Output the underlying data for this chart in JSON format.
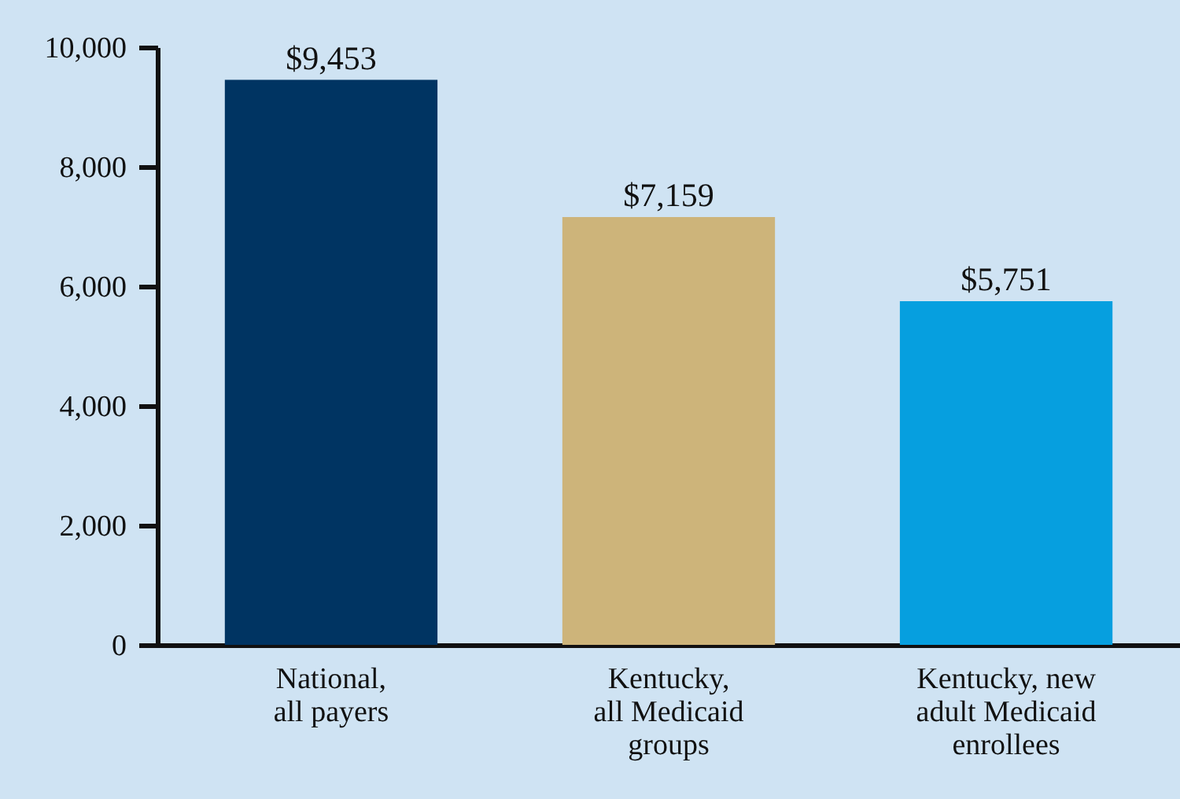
{
  "chart_data": {
    "type": "bar",
    "categories": [
      "National,\nall payers",
      "Kentucky,\nall Medicaid\ngroups",
      "Kentucky, new\nadult Medicaid\nenrollees"
    ],
    "values": [
      9453,
      7159,
      5751
    ],
    "colors": [
      "#003462",
      "#cdb47a",
      "#069fdf"
    ],
    "value_labels": [
      "$9,453",
      "$7,159",
      "$5,751"
    ],
    "ylim": [
      0,
      10000
    ],
    "yticks": [
      0,
      {
        "value": 2000,
        "label": "2,000"
      },
      {
        "value": 4000,
        "label": "4,000"
      },
      {
        "value": 6000,
        "label": "6,000"
      },
      {
        "value": 8000,
        "label": "8,000"
      },
      {
        "value": 10000,
        "label": "10,000"
      }
    ],
    "grid": false
  }
}
